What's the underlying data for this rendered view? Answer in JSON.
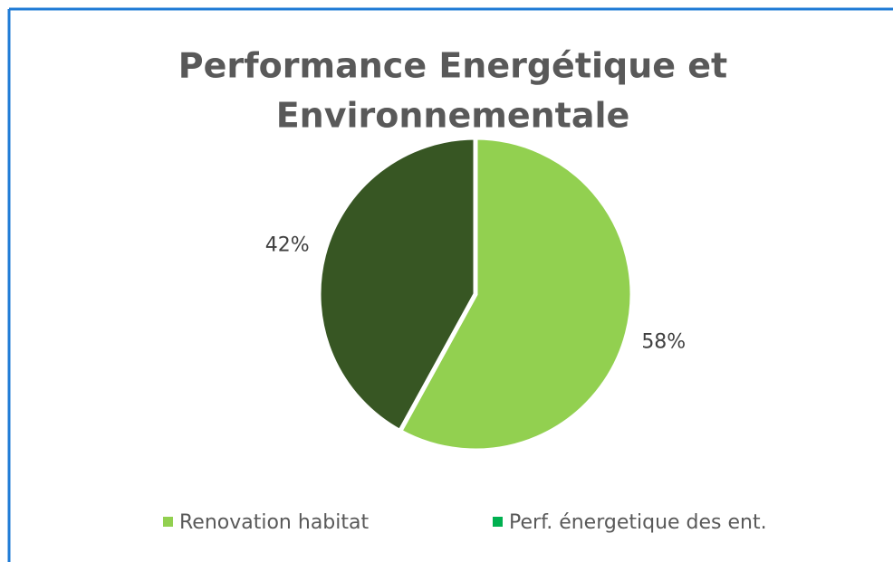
{
  "chart_data": {
    "type": "pie",
    "title": [
      "Performance Energétique et",
      "Environnementale"
    ],
    "categories": [
      "Renovation habitat",
      "Perf. énergetique des ent."
    ],
    "values": [
      58,
      42
    ],
    "value_labels": [
      "58%",
      "42%"
    ],
    "colors": [
      "#92d050",
      "#375623"
    ],
    "legend_colors": [
      "#92d050",
      "#00b050"
    ],
    "legend": "bottom"
  }
}
